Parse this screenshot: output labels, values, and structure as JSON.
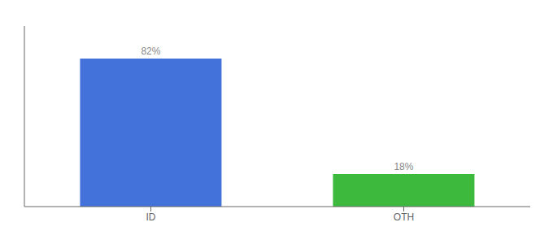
{
  "chart_data": {
    "type": "bar",
    "categories": [
      "ID",
      "OTH"
    ],
    "values": [
      82,
      18
    ],
    "value_labels": [
      "82%",
      "18%"
    ],
    "data_labels": true,
    "colors": [
      "#4472db",
      "#3dba3d"
    ],
    "ylim": [
      0,
      100
    ],
    "grid": false,
    "tick_labels": "x"
  }
}
